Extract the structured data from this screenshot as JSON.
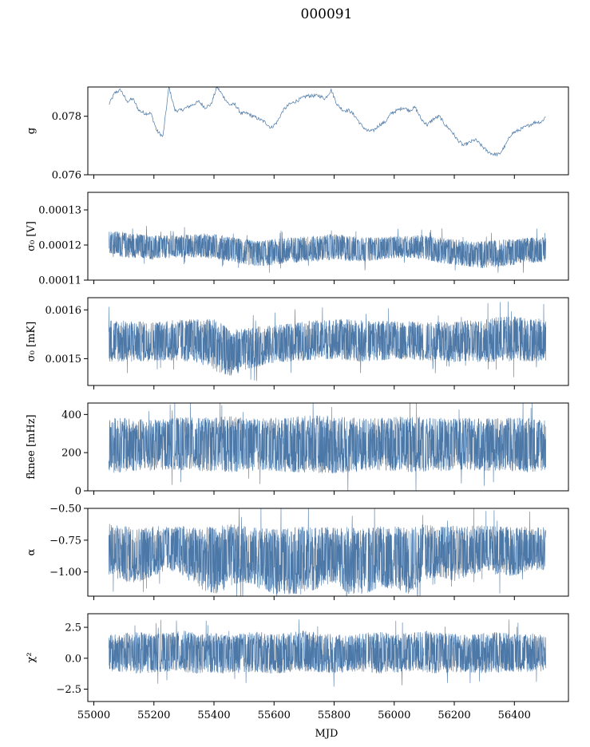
{
  "figure": {
    "title": "000091",
    "xlabel": "MJD",
    "series_color": "#4c78a8"
  },
  "chart_data": [
    {
      "type": "line",
      "ylabel": "g",
      "xlim": [
        54980,
        56580
      ],
      "ylim": [
        0.076,
        0.079
      ],
      "yticks": [
        {
          "v": 0.076,
          "label": "0.076"
        },
        {
          "v": 0.078,
          "label": "0.078"
        }
      ],
      "x": [
        55050,
        55070,
        55090,
        55110,
        55130,
        55150,
        55170,
        55190,
        55210,
        55230,
        55250,
        55270,
        55290,
        55310,
        55330,
        55350,
        55370,
        55390,
        55410,
        55430,
        55450,
        55470,
        55490,
        55510,
        55530,
        55550,
        55570,
        55590,
        55610,
        55630,
        55650,
        55670,
        55690,
        55710,
        55730,
        55750,
        55770,
        55790,
        55810,
        55830,
        55850,
        55870,
        55890,
        55910,
        55930,
        55950,
        55970,
        55990,
        56010,
        56030,
        56050,
        56070,
        56090,
        56110,
        56130,
        56150,
        56170,
        56190,
        56210,
        56230,
        56250,
        56270,
        56290,
        56310,
        56330,
        56350,
        56370,
        56390,
        56410,
        56430,
        56450,
        56470,
        56490,
        56505
      ],
      "y": [
        0.0784,
        0.0788,
        0.0789,
        0.0785,
        0.0786,
        0.0782,
        0.0781,
        0.0781,
        0.0775,
        0.0773,
        0.079,
        0.0782,
        0.0782,
        0.0783,
        0.0784,
        0.0785,
        0.0783,
        0.0784,
        0.079,
        0.0787,
        0.0784,
        0.0784,
        0.0781,
        0.0781,
        0.078,
        0.0779,
        0.0778,
        0.0776,
        0.0778,
        0.0782,
        0.0784,
        0.0785,
        0.0786,
        0.0787,
        0.0787,
        0.0787,
        0.0786,
        0.0789,
        0.0784,
        0.0782,
        0.0782,
        0.078,
        0.0777,
        0.0775,
        0.0775,
        0.0777,
        0.0778,
        0.0781,
        0.0782,
        0.0783,
        0.0782,
        0.0783,
        0.0779,
        0.0777,
        0.0779,
        0.078,
        0.0777,
        0.0775,
        0.0772,
        0.077,
        0.0771,
        0.0772,
        0.077,
        0.0768,
        0.0767,
        0.0767,
        0.077,
        0.0774,
        0.0775,
        0.0776,
        0.0777,
        0.0778,
        0.0778,
        0.078
      ]
    },
    {
      "type": "line",
      "ylabel": "σ₀ [V]",
      "xlim": [
        54980,
        56580
      ],
      "ylim": [
        0.00011,
        0.000135
      ],
      "yticks": [
        {
          "v": 0.00011,
          "label": "0.00011"
        },
        {
          "v": 0.00012,
          "label": "0.00012"
        },
        {
          "v": 0.00013,
          "label": "0.00013"
        }
      ],
      "x": [
        55050,
        55100,
        55150,
        55200,
        55250,
        55300,
        55350,
        55400,
        55450,
        55500,
        55550,
        55600,
        55650,
        55700,
        55750,
        55800,
        55850,
        55900,
        55950,
        56000,
        56050,
        56100,
        56150,
        56200,
        56250,
        56300,
        56350,
        56400,
        56450,
        56505
      ],
      "low": [
        0.0001175,
        0.000116,
        0.000116,
        0.0001155,
        0.000116,
        0.000116,
        0.0001162,
        0.0001158,
        0.000115,
        0.000114,
        0.0001135,
        0.000114,
        0.0001145,
        0.0001148,
        0.000115,
        0.0001155,
        0.000115,
        0.000115,
        0.0001155,
        0.000116,
        0.000116,
        0.0001155,
        0.0001145,
        0.000114,
        0.0001135,
        0.000113,
        0.0001135,
        0.000114,
        0.0001145,
        0.000115
      ],
      "high": [
        0.0001245,
        0.000124,
        0.0001235,
        0.000123,
        0.000123,
        0.0001232,
        0.0001235,
        0.0001235,
        0.0001228,
        0.000122,
        0.0001215,
        0.000122,
        0.0001225,
        0.0001228,
        0.000123,
        0.0001235,
        0.000123,
        0.0001225,
        0.0001225,
        0.0001228,
        0.000123,
        0.0001232,
        0.0001225,
        0.000122,
        0.0001215,
        0.0001215,
        0.0001218,
        0.0001222,
        0.0001225,
        0.0001225
      ],
      "gaps": [
        55910,
        56100
      ]
    },
    {
      "type": "line",
      "ylabel": "σ₀ [mK]",
      "xlim": [
        54980,
        56580
      ],
      "ylim": [
        0.001445,
        0.001625
      ],
      "yticks": [
        {
          "v": 0.0015,
          "label": "0.0015"
        },
        {
          "v": 0.0016,
          "label": "0.0016"
        }
      ],
      "x": [
        55050,
        55100,
        55150,
        55200,
        55250,
        55300,
        55350,
        55400,
        55450,
        55500,
        55550,
        55600,
        55650,
        55700,
        55750,
        55800,
        55850,
        55900,
        55950,
        56000,
        56050,
        56100,
        56150,
        56200,
        56250,
        56300,
        56350,
        56400,
        56450,
        56505
      ],
      "low": [
        0.00149,
        0.001488,
        0.00149,
        0.001492,
        0.001492,
        0.00149,
        0.001488,
        0.00147,
        0.00146,
        0.00147,
        0.00148,
        0.001488,
        0.00149,
        0.001492,
        0.001495,
        0.001495,
        0.001492,
        0.00149,
        0.001492,
        0.001495,
        0.001495,
        0.001492,
        0.00149,
        0.00149,
        0.00149,
        0.001488,
        0.00149,
        0.00149,
        0.00149,
        0.001492
      ],
      "high": [
        0.001585,
        0.001582,
        0.00158,
        0.00158,
        0.001582,
        0.001585,
        0.001585,
        0.001588,
        0.001565,
        0.001565,
        0.00157,
        0.001572,
        0.001575,
        0.00158,
        0.001582,
        0.001585,
        0.001585,
        0.001582,
        0.001582,
        0.00158,
        0.00158,
        0.001578,
        0.00158,
        0.00158,
        0.001582,
        0.001585,
        0.00159,
        0.001592,
        0.001588,
        0.001585
      ],
      "gaps": [
        55910,
        56100
      ]
    },
    {
      "type": "line",
      "ylabel": "fknee [mHz]",
      "xlim": [
        54980,
        56580
      ],
      "ylim": [
        0,
        460
      ],
      "yticks": [
        {
          "v": 0,
          "label": "0"
        },
        {
          "v": 200,
          "label": "200"
        },
        {
          "v": 400,
          "label": "400"
        }
      ],
      "x": [
        55050,
        55100,
        55150,
        55200,
        55250,
        55300,
        55350,
        55400,
        55450,
        55500,
        55550,
        55600,
        55650,
        55700,
        55750,
        55800,
        55850,
        55900,
        55950,
        56000,
        56050,
        56100,
        56150,
        56200,
        56250,
        56300,
        56350,
        56400,
        56450,
        56505
      ],
      "low": [
        80,
        85,
        90,
        95,
        100,
        95,
        90,
        90,
        85,
        90,
        95,
        90,
        85,
        80,
        80,
        75,
        80,
        85,
        90,
        90,
        85,
        85,
        90,
        95,
        95,
        90,
        90,
        90,
        85,
        90
      ],
      "high": [
        400,
        395,
        390,
        385,
        390,
        400,
        395,
        400,
        405,
        395,
        390,
        395,
        400,
        405,
        410,
        405,
        400,
        395,
        395,
        400,
        405,
        400,
        395,
        390,
        395,
        390,
        395,
        400,
        395,
        395
      ],
      "gaps": [
        55910,
        56100
      ]
    },
    {
      "type": "line",
      "ylabel": "α",
      "xlim": [
        54980,
        56580
      ],
      "ylim": [
        -1.19,
        -0.5
      ],
      "yticks": [
        {
          "v": -1.0,
          "label": "−1.00"
        },
        {
          "v": -0.75,
          "label": "−0.75"
        },
        {
          "v": -0.5,
          "label": "−0.50"
        }
      ],
      "x": [
        55050,
        55100,
        55150,
        55200,
        55250,
        55300,
        55350,
        55400,
        55450,
        55500,
        55550,
        55600,
        55650,
        55700,
        55750,
        55800,
        55850,
        55900,
        55950,
        56000,
        56050,
        56100,
        56150,
        56200,
        56250,
        56300,
        56350,
        56400,
        56450,
        56505
      ],
      "low": [
        -1.05,
        -1.1,
        -1.1,
        -1.05,
        -1.0,
        -1.05,
        -1.15,
        -1.2,
        -1.15,
        -1.1,
        -1.15,
        -1.2,
        -1.2,
        -1.2,
        -1.15,
        -1.1,
        -1.2,
        -1.2,
        -1.15,
        -1.15,
        -1.2,
        -1.1,
        -1.05,
        -1.1,
        -1.05,
        -1.0,
        -1.05,
        -1.05,
        -1.0,
        -1.0
      ],
      "high": [
        -0.6,
        -0.62,
        -0.63,
        -0.62,
        -0.63,
        -0.62,
        -0.63,
        -0.62,
        -0.6,
        -0.62,
        -0.63,
        -0.64,
        -0.63,
        -0.62,
        -0.62,
        -0.63,
        -0.62,
        -0.63,
        -0.62,
        -0.62,
        -0.63,
        -0.6,
        -0.62,
        -0.62,
        -0.61,
        -0.62,
        -0.62,
        -0.62,
        -0.63,
        -0.63
      ],
      "gaps": [
        55910,
        56100
      ]
    },
    {
      "type": "line",
      "ylabel": "χ²",
      "xlim": [
        54980,
        56580
      ],
      "ylim": [
        -3.5,
        3.6
      ],
      "yticks": [
        {
          "v": -2.5,
          "label": "−2.5"
        },
        {
          "v": 0,
          "label": "0.0"
        },
        {
          "v": 2.5,
          "label": "2.5"
        }
      ],
      "x": [
        55050,
        55100,
        55150,
        55200,
        55250,
        55300,
        55350,
        55400,
        55450,
        55500,
        55550,
        55600,
        55650,
        55700,
        55750,
        55800,
        55850,
        55900,
        55950,
        56000,
        56050,
        56100,
        56150,
        56200,
        56250,
        56300,
        56350,
        56400,
        56450,
        56505
      ],
      "low": [
        -1.2,
        -1.3,
        -1.4,
        -1.3,
        -1.2,
        -1.3,
        -1.4,
        -1.3,
        -1.4,
        -1.3,
        -1.3,
        -1.4,
        -1.3,
        -1.2,
        -1.3,
        -1.4,
        -1.3,
        -1.3,
        -1.4,
        -1.3,
        -1.2,
        -1.3,
        -1.4,
        -1.3,
        -1.3,
        -1.4,
        -1.3,
        -1.2,
        -1.3,
        -1.2
      ],
      "high": [
        2.0,
        2.2,
        2.3,
        2.1,
        2.2,
        2.4,
        2.1,
        2.2,
        2.0,
        2.2,
        2.3,
        2.1,
        2.2,
        2.4,
        2.2,
        2.1,
        2.0,
        2.2,
        2.3,
        2.1,
        2.2,
        2.4,
        2.2,
        2.1,
        2.0,
        2.2,
        2.3,
        2.1,
        2.2,
        2.0
      ],
      "gaps": [
        55910,
        56100
      ]
    }
  ],
  "shared_xticks": [
    {
      "v": 55000,
      "label": "55000"
    },
    {
      "v": 55200,
      "label": "55200"
    },
    {
      "v": 55400,
      "label": "55400"
    },
    {
      "v": 55600,
      "label": "55600"
    },
    {
      "v": 55800,
      "label": "55800"
    },
    {
      "v": 56000,
      "label": "56000"
    },
    {
      "v": 56200,
      "label": "56200"
    },
    {
      "v": 56400,
      "label": "56400"
    }
  ]
}
